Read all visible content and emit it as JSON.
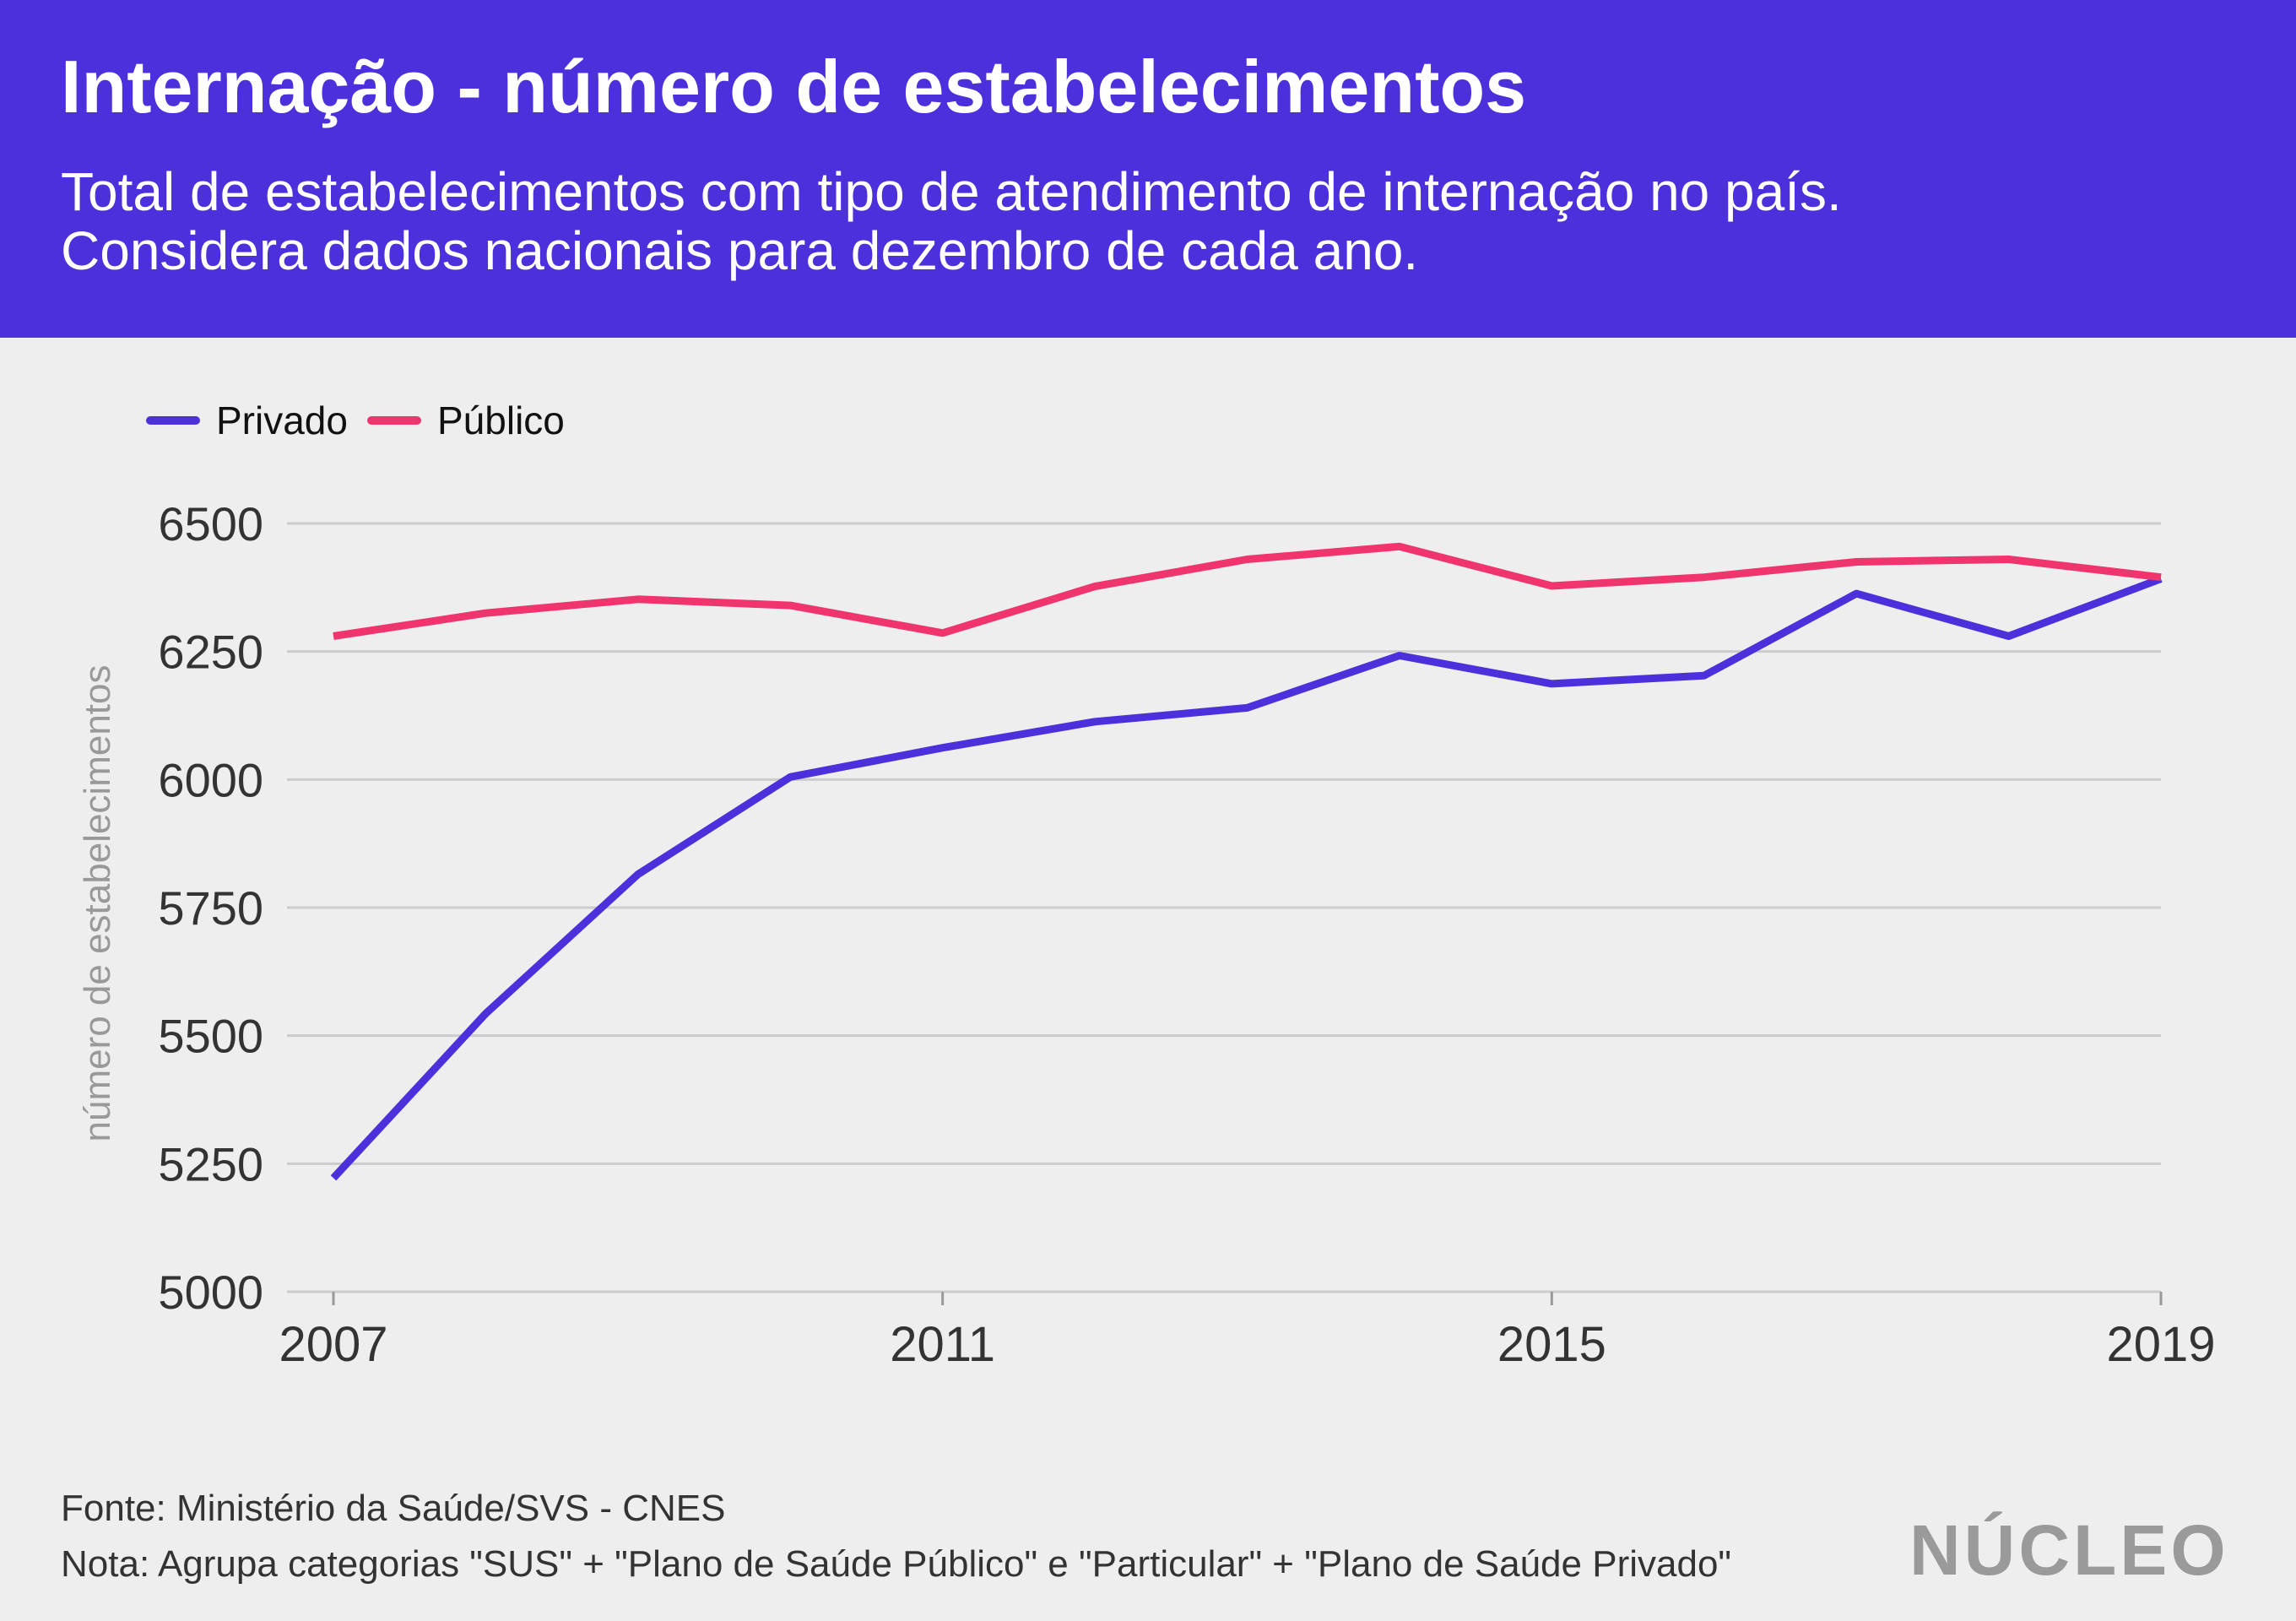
{
  "header": {
    "title": "Internação - número de estabelecimentos",
    "subtitle_line1": "Total de estabelecimentos com tipo de atendimento de internação no país.",
    "subtitle_line2": "Considera dados nacionais para dezembro de cada ano."
  },
  "footer": {
    "source": "Fonte: Ministério da Saúde/SVS - CNES",
    "note": "Nota: Agrupa categorias \"SUS\" + \"Plano de Saúde Público\" e \"Particular\" + \"Plano de Saúde Privado\"",
    "logo": "NÚCLEO"
  },
  "colors": {
    "header_bg": "#4b30dc",
    "privado": "#4b30dc",
    "publico": "#f0346e",
    "grid": "#cccccc",
    "axis_label": "#999999",
    "tick_text": "#333333"
  },
  "chart_data": {
    "type": "line",
    "title": "Internação - número de estabelecimentos",
    "xlabel": "",
    "ylabel": "número de estabelecimentos",
    "x": [
      2007,
      2008,
      2009,
      2010,
      2011,
      2012,
      2013,
      2014,
      2015,
      2016,
      2017,
      2018,
      2019
    ],
    "x_ticks": [
      2007,
      2011,
      2015,
      2019
    ],
    "y_ticks": [
      5000,
      5250,
      5500,
      5750,
      6000,
      6250,
      6500
    ],
    "ylim": [
      5000,
      6500
    ],
    "grid": true,
    "legend_position": "top-left",
    "series": [
      {
        "name": "Privado",
        "color": "#4b30dc",
        "values": [
          5222,
          5543,
          5815,
          6005,
          6062,
          6113,
          6140,
          6242,
          6187,
          6203,
          6363,
          6280,
          6392
        ]
      },
      {
        "name": "Público",
        "color": "#f0346e",
        "values": [
          6280,
          6325,
          6352,
          6340,
          6286,
          6377,
          6430,
          6455,
          6378,
          6395,
          6425,
          6430,
          6395
        ]
      }
    ]
  }
}
